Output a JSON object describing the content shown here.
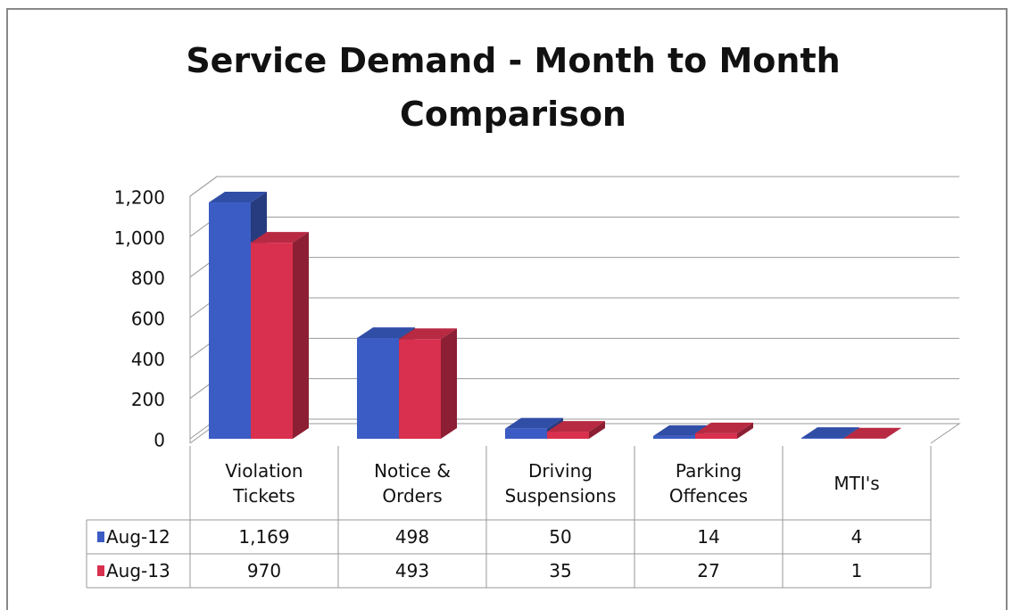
{
  "chart_data": {
    "type": "bar3d",
    "title": "Service Demand - Month to Month Comparison",
    "categories": [
      "Violation Tickets",
      "Notice & Orders",
      "Driving Suspensions",
      "Parking Offences",
      "MTI's"
    ],
    "series": [
      {
        "name": "Aug-12",
        "color": "#3a5cc4",
        "values": [
          1169,
          498,
          50,
          14,
          4
        ],
        "value_labels": [
          "1,169",
          "498",
          "50",
          "14",
          "4"
        ]
      },
      {
        "name": "Aug-13",
        "color": "#d8304e",
        "values": [
          970,
          493,
          35,
          27,
          1
        ],
        "value_labels": [
          "970",
          "493",
          "35",
          "27",
          "1"
        ]
      }
    ],
    "ylim": [
      0,
      1200
    ],
    "yticks": [
      0,
      200,
      400,
      600,
      800,
      {
        "value": 1000,
        "label": "1,000"
      },
      {
        "value": 1200,
        "label": "1,200"
      }
    ],
    "grid": true
  }
}
